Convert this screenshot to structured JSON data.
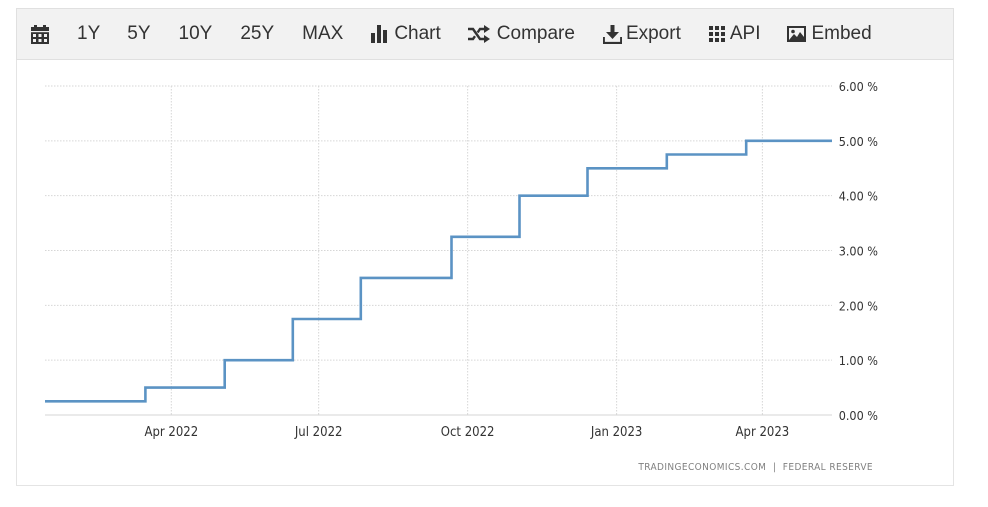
{
  "toolbar": {
    "calendar_icon": "calendar-icon",
    "ranges": [
      "1Y",
      "5Y",
      "10Y",
      "25Y",
      "MAX"
    ],
    "chart_label": "Chart",
    "compare_label": "Compare",
    "export_label": "Export",
    "api_label": "API",
    "embed_label": "Embed"
  },
  "colors": {
    "line": "#5b93c4",
    "grid": "#d6d6d6",
    "text": "#333333",
    "source": "#808080"
  },
  "source_text": "TRADINGECONOMICS.COM  |  FEDERAL RESERVE",
  "chart_data": {
    "type": "line",
    "step": true,
    "x_range": [
      "2022-01-13",
      "2023-05-14"
    ],
    "ylim": [
      0,
      6
    ],
    "y_ticks": [
      "0.00 %",
      "1.00 %",
      "2.00 %",
      "3.00 %",
      "4.00 %",
      "5.00 %",
      "6.00 %"
    ],
    "y_tick_values": [
      0,
      1,
      2,
      3,
      4,
      5,
      6
    ],
    "x_ticks": [
      {
        "label": "Apr 2022",
        "date": "2022-04-01"
      },
      {
        "label": "Jul 2022",
        "date": "2022-07-01"
      },
      {
        "label": "Oct 2022",
        "date": "2022-10-01"
      },
      {
        "label": "Jan 2023",
        "date": "2023-01-01"
      },
      {
        "label": "Apr 2023",
        "date": "2023-04-01"
      }
    ],
    "grid": true,
    "series": [
      {
        "points": [
          {
            "date": "2022-01-13",
            "value": 0.25
          },
          {
            "date": "2022-03-16",
            "value": 0.5
          },
          {
            "date": "2022-05-04",
            "value": 1.0
          },
          {
            "date": "2022-06-15",
            "value": 1.75
          },
          {
            "date": "2022-07-27",
            "value": 2.5
          },
          {
            "date": "2022-09-21",
            "value": 3.25
          },
          {
            "date": "2022-11-02",
            "value": 4.0
          },
          {
            "date": "2022-12-14",
            "value": 4.5
          },
          {
            "date": "2023-02-01",
            "value": 4.75
          },
          {
            "date": "2023-03-22",
            "value": 5.0
          },
          {
            "date": "2023-05-14",
            "value": 5.0
          }
        ]
      }
    ]
  }
}
